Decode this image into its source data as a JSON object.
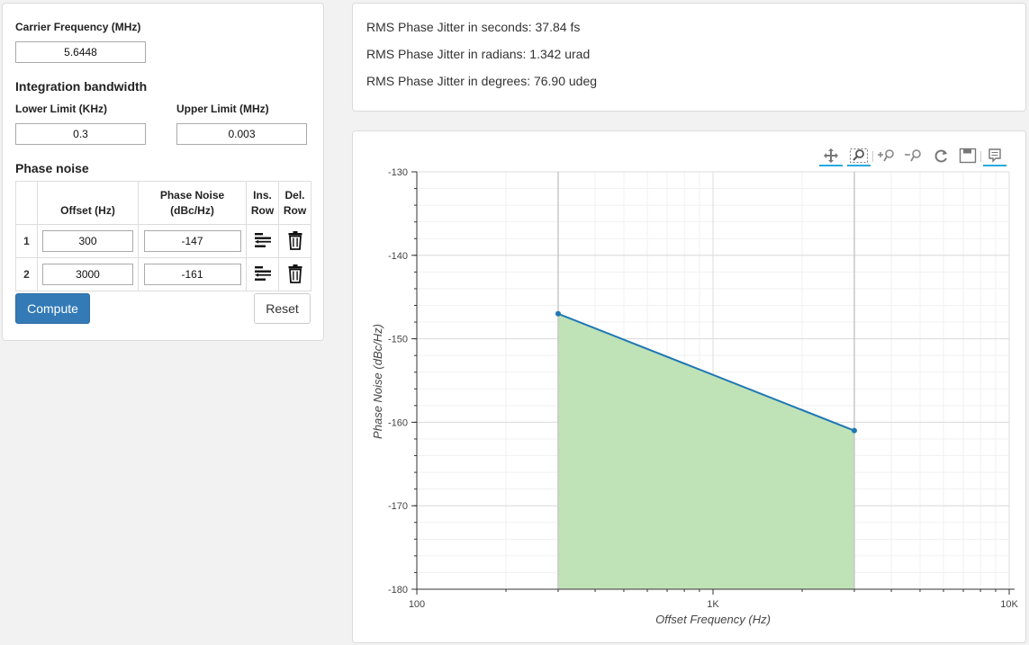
{
  "carrier": {
    "label": "Carrier Frequency (MHz)",
    "value": "5.6448"
  },
  "integration": {
    "title": "Integration bandwidth",
    "lower_label": "Lower Limit (KHz)",
    "lower_value": "0.3",
    "upper_label": "Upper Limit (MHz)",
    "upper_value": "0.003"
  },
  "phase_noise": {
    "title": "Phase noise",
    "headers": {
      "offset": "Offset (Hz)",
      "noise_line1": "Phase Noise",
      "noise_line2": "(dBc/Hz)",
      "ins_line1": "Ins.",
      "ins_line2": "Row",
      "del_line1": "Del.",
      "del_line2": "Row"
    },
    "rows": [
      {
        "num": "1",
        "offset": "300",
        "noise": "-147"
      },
      {
        "num": "2",
        "offset": "3000",
        "noise": "-161"
      }
    ]
  },
  "buttons": {
    "compute": "Compute",
    "reset": "Reset"
  },
  "jitter": {
    "seconds": "RMS Phase Jitter in seconds: 37.84 fs",
    "radians": "RMS Phase Jitter in radians: 1.342 urad",
    "degrees": "RMS Phase Jitter in degrees: 76.90 udeg"
  },
  "toolbar": [
    "pan-icon",
    "box-zoom-icon",
    "zoom-in-icon",
    "zoom-out-icon",
    "reset-icon",
    "save-icon",
    "hover-icon"
  ],
  "colors": {
    "primary": "#337ab7",
    "line": "#1f77b4",
    "fill": "#bfe2b7",
    "tool_active": "#26aae1"
  },
  "chart_data": {
    "type": "area",
    "x": [
      300,
      3000
    ],
    "series": [
      {
        "values": [
          -147,
          -161
        ]
      }
    ],
    "xlabel": "Offset Frequency (Hz)",
    "ylabel": "Phase Noise (dBc/Hz)",
    "xscale": "log",
    "xlim": [
      100,
      10000
    ],
    "ylim": [
      -180,
      -130
    ],
    "xticks": [
      {
        "value": 100,
        "label": "100"
      },
      {
        "value": 1000,
        "label": "1K"
      },
      {
        "value": 10000,
        "label": "10K"
      }
    ],
    "yticks": [
      -130,
      -140,
      -150,
      -160,
      -170,
      -180
    ],
    "span_lines": [
      300,
      3000
    ],
    "grid": true
  }
}
